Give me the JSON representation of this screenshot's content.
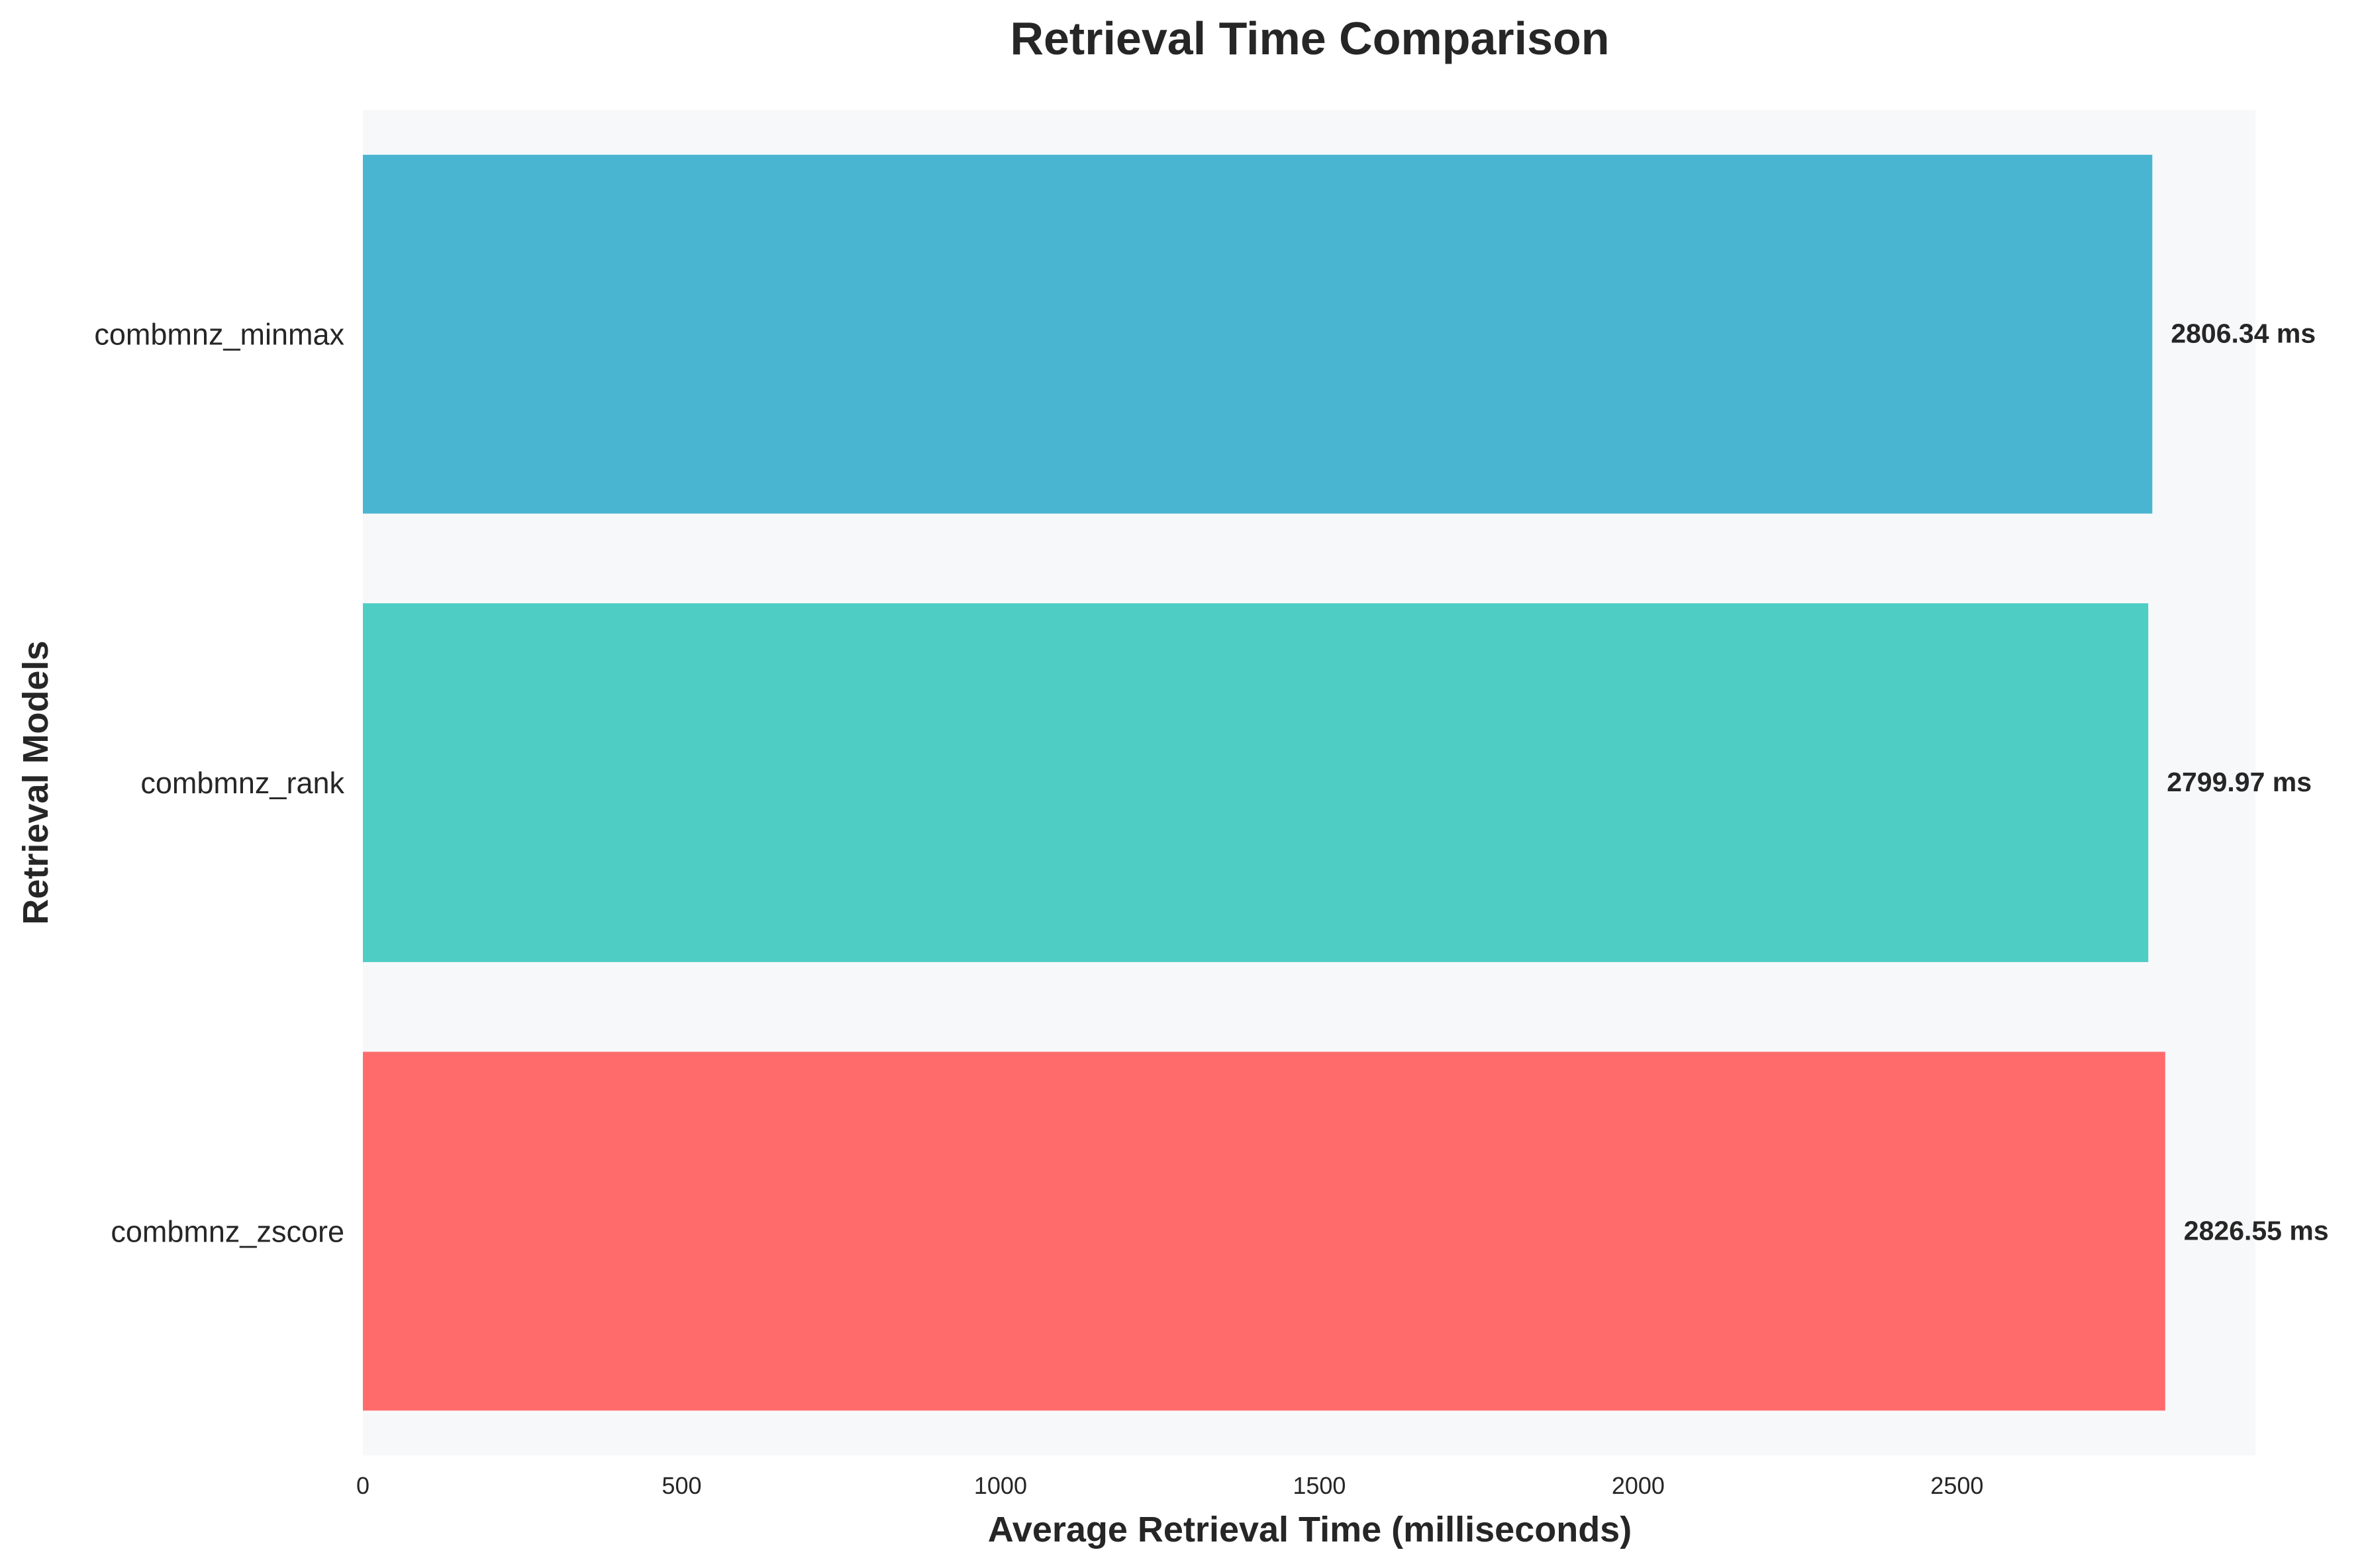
{
  "chart_data": {
    "type": "bar",
    "orientation": "horizontal",
    "title": "Retrieval Time Comparison",
    "xlabel": "Average Retrieval Time (milliseconds)",
    "ylabel": "Retrieval Models",
    "categories": [
      "combmnz_minmax",
      "combmnz_rank",
      "combmnz_zscore"
    ],
    "values": [
      2806.34,
      2799.97,
      2826.55
    ],
    "value_labels": [
      "2806.34 ms",
      "2799.97 ms",
      "2826.55 ms"
    ],
    "colors": [
      "#4ab5d0",
      "#4ecdc4",
      "#ff6b6b"
    ],
    "xlim": [
      0,
      2968
    ],
    "xticks": [
      0,
      500,
      1000,
      1500,
      2000,
      2500
    ],
    "xtick_labels": [
      "0",
      "500",
      "1000",
      "1500",
      "2000",
      "2500"
    ],
    "grid": false,
    "legend": "none",
    "plot_background": "#f7f8fa"
  }
}
